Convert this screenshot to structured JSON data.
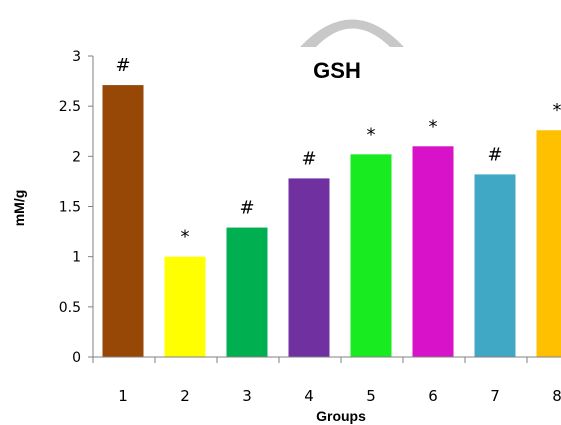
{
  "chart_data": {
    "type": "bar",
    "title": "GSH",
    "xlabel": "Groups",
    "ylabel": "mM/g",
    "ylim": [
      0,
      3
    ],
    "yticks": [
      "0",
      "0.5",
      "1",
      "1.5",
      "2",
      "2.5",
      "3"
    ],
    "grid": false,
    "legend": "none",
    "categories": [
      "1",
      "2",
      "3",
      "4",
      "5",
      "6",
      "7",
      "8"
    ],
    "values": [
      2.71,
      1.0,
      1.29,
      1.78,
      2.02,
      2.1,
      1.82,
      2.26
    ],
    "annotations": [
      "#",
      "*",
      "#",
      "#",
      "*",
      "*",
      "#",
      "*"
    ],
    "colors": [
      "#974706",
      "#FFFF00",
      "#00B050",
      "#7030A0",
      "#19EB21",
      "#D712C9",
      "#40A8C4",
      "#FFC000"
    ]
  }
}
